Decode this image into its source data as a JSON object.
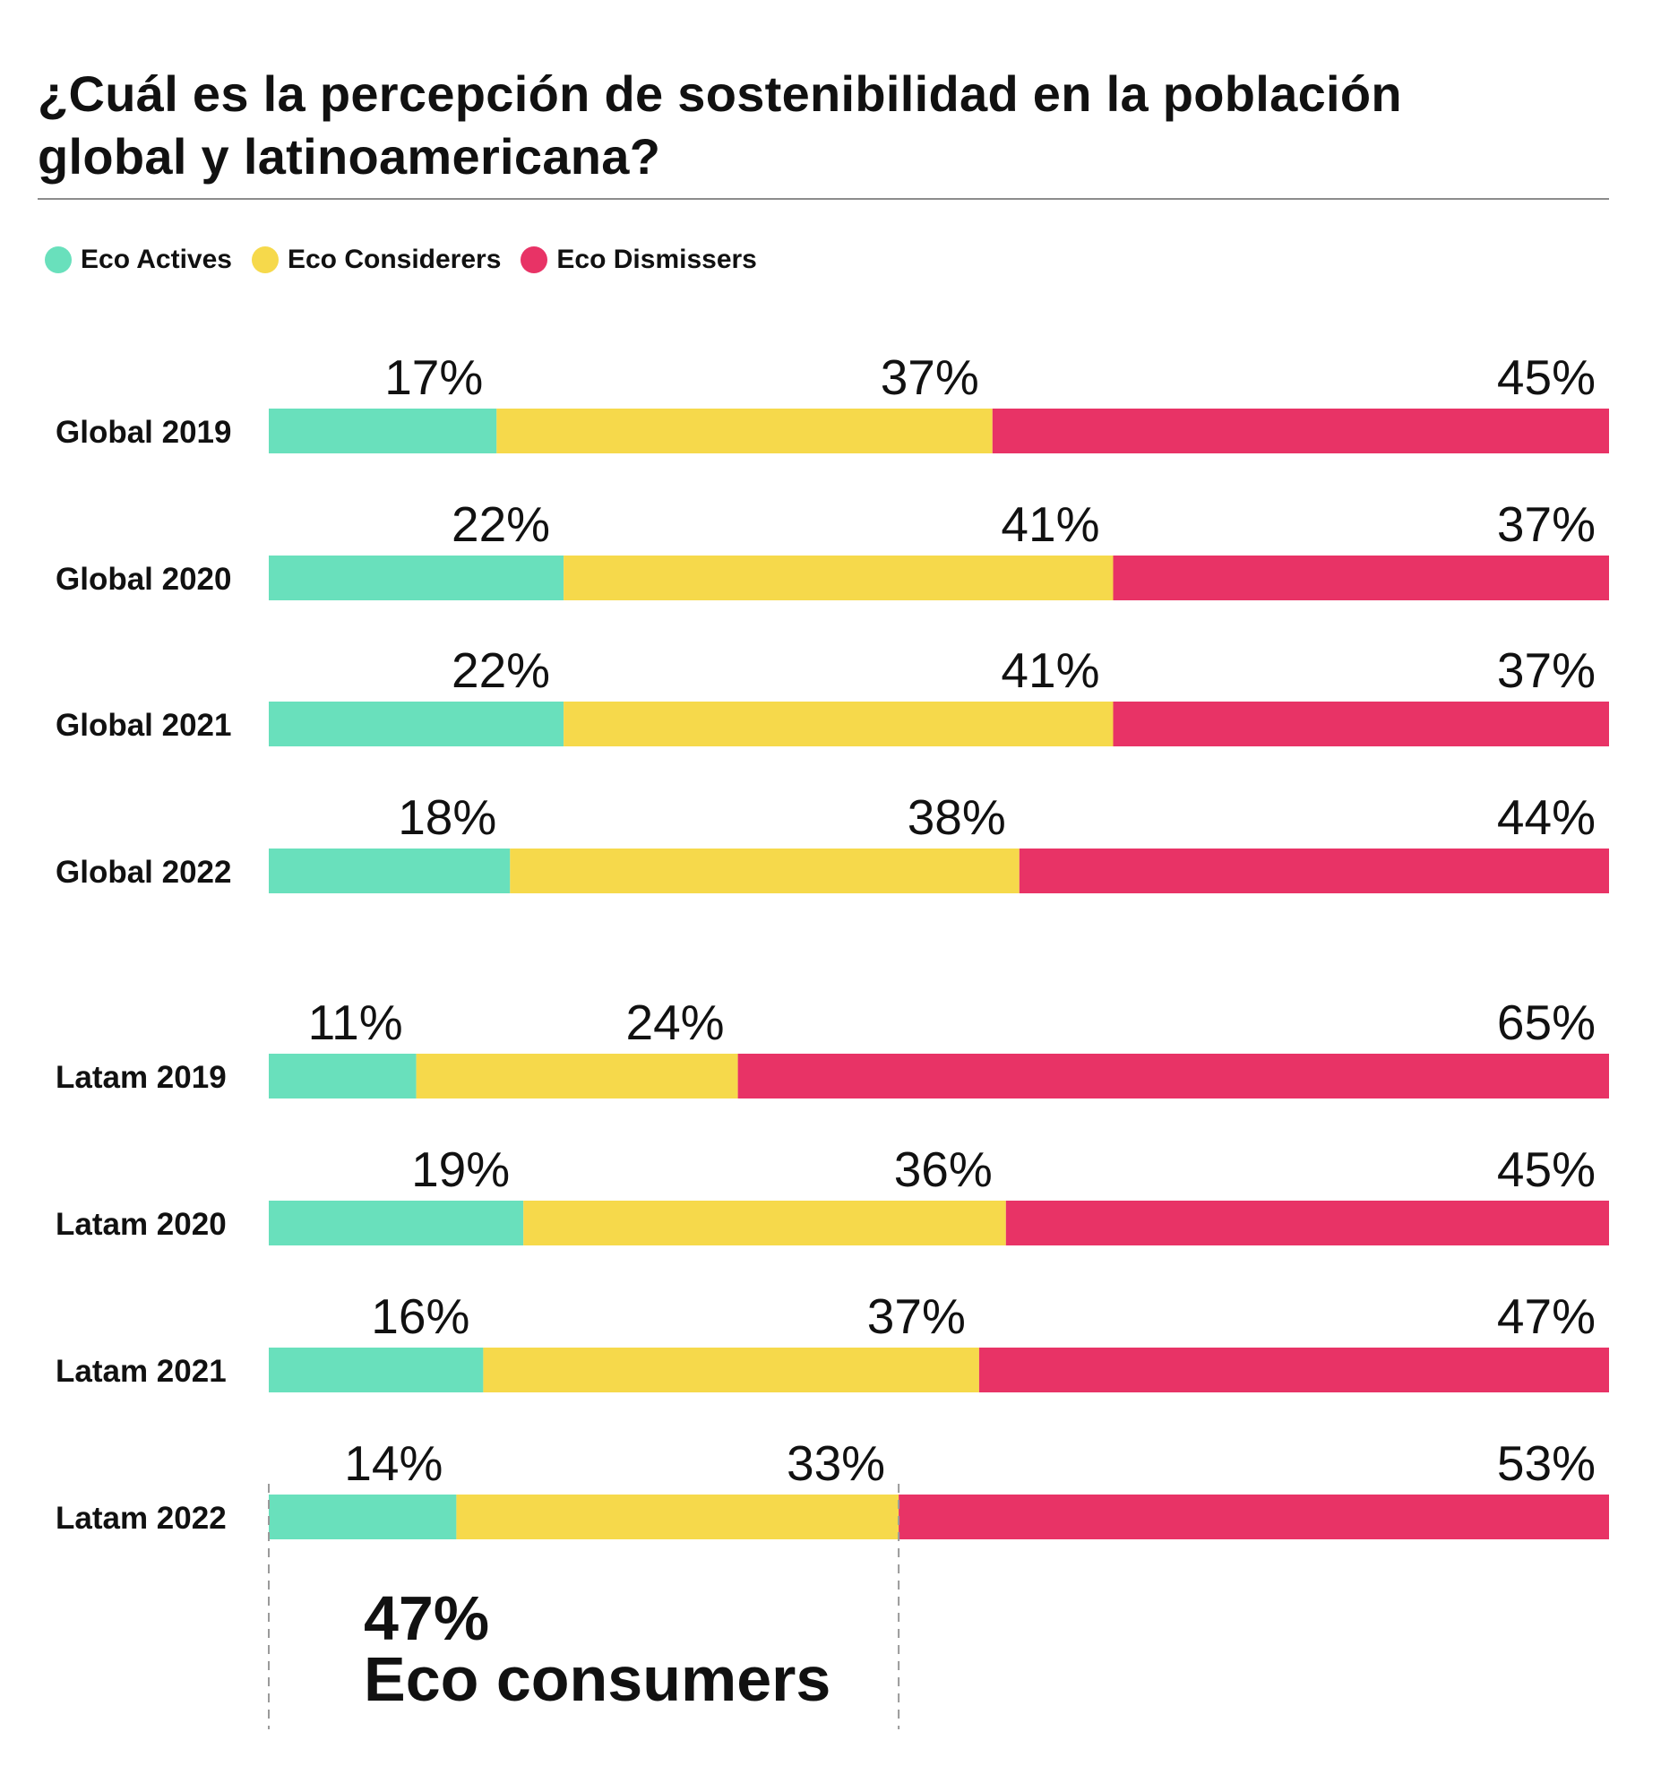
{
  "colors": {
    "eco_actives": "#69E0BC",
    "eco_considerers": "#F6D94B",
    "eco_dismissers": "#E83366",
    "text": "#111111",
    "rule": "#8C8C8C",
    "guide": "#9A9A9A"
  },
  "chart_data": {
    "type": "bar",
    "orientation": "horizontal",
    "stacked": true,
    "title": "¿Cuál es la percepción de sostenibilidad en la población global y latinoamericana?",
    "xlabel": "",
    "ylabel": "",
    "xlim": [
      0,
      100
    ],
    "legend_position": "top-left",
    "categories": [
      "Global 2019",
      "Global 2020",
      "Global 2021",
      "Global 2022",
      "Latam 2019",
      "Latam 2020",
      "Latam 2021",
      "Latam 2022"
    ],
    "series": [
      {
        "name": "Eco Actives",
        "color_key": "eco_actives",
        "values": [
          17,
          22,
          22,
          18,
          11,
          19,
          16,
          14
        ],
        "labels": [
          "17%",
          "22%",
          "22%",
          "18%",
          "11%",
          "19%",
          "16%",
          "14%"
        ]
      },
      {
        "name": "Eco Considerers",
        "color_key": "eco_considerers",
        "values": [
          37,
          41,
          41,
          38,
          24,
          36,
          37,
          33
        ],
        "labels": [
          "37%",
          "41%",
          "41%",
          "38%",
          "24%",
          "36%",
          "37%",
          "33%"
        ]
      },
      {
        "name": "Eco Dismissers",
        "color_key": "eco_dismissers",
        "values": [
          45,
          37,
          37,
          44,
          65,
          45,
          47,
          53
        ],
        "labels": [
          "45%",
          "37%",
          "37%",
          "44%",
          "65%",
          "45%",
          "47%",
          "53%"
        ]
      }
    ],
    "annotation": {
      "category": "Latam 2022",
      "span_series": [
        "Eco Actives",
        "Eco Considerers"
      ],
      "value": "47%",
      "text": "Eco consumers"
    }
  }
}
